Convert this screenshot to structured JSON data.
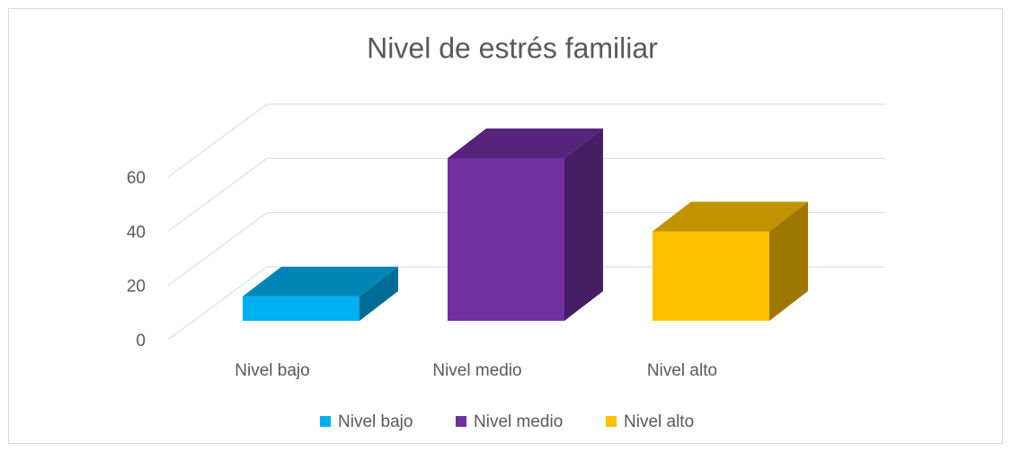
{
  "chart_data": {
    "type": "bar3d",
    "title": "Nivel de estrés familiar",
    "categories": [
      "Nivel bajo",
      "Nivel medio",
      "Nivel alto"
    ],
    "series": [
      {
        "name": "Nivel bajo",
        "color": "#00b0f0"
      },
      {
        "name": "Nivel medio",
        "color": "#7030a0"
      },
      {
        "name": "Nivel alto",
        "color": "#ffc000"
      }
    ],
    "values": [
      9,
      60,
      33
    ],
    "ylim": [
      0,
      60
    ],
    "yticks": [
      0,
      20,
      40,
      60
    ],
    "grid": true,
    "legend": "bottom"
  }
}
